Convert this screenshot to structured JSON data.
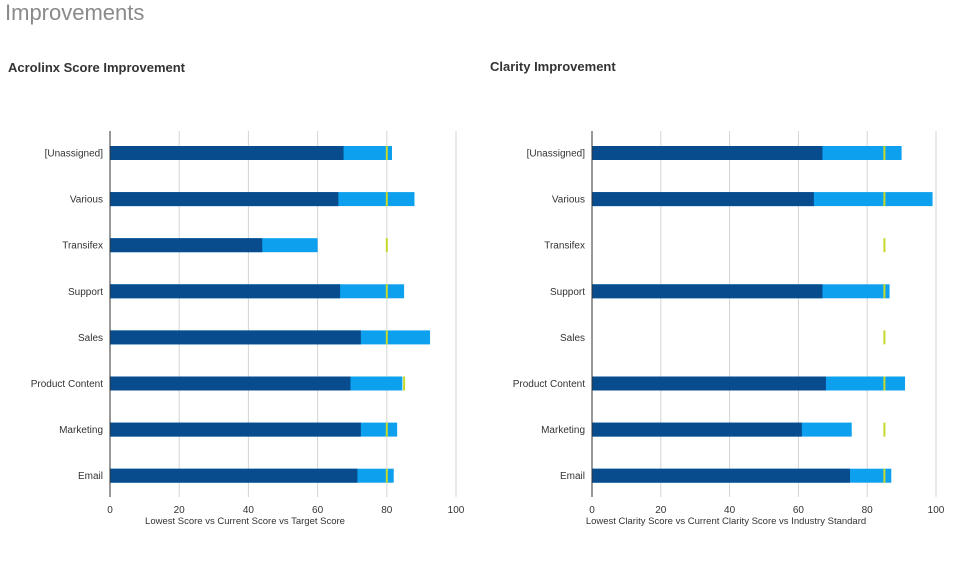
{
  "page": {
    "title": "Improvements"
  },
  "colors": {
    "lowest": "#084c8d",
    "current": "#0ca0ee",
    "target": "#c6d82a",
    "grid": "#d4d4d4",
    "axis": "#333333",
    "label": "#333333"
  },
  "chart_data": [
    {
      "type": "bar",
      "title": "Acrolinx Score Improvement",
      "xlabel": "Lowest Score vs Current Score vs Target Score",
      "xlim": [
        0,
        100
      ],
      "xticks": [
        0,
        20,
        40,
        60,
        80,
        100
      ],
      "categories": [
        "[Unassigned]",
        "Various",
        "Transifex",
        "Support",
        "Sales",
        "Product Content",
        "Marketing",
        "Email"
      ],
      "series": [
        {
          "key": "lowest",
          "values": [
            67.5,
            66,
            44,
            66.5,
            72.5,
            69.5,
            72.5,
            71.5
          ]
        },
        {
          "key": "current",
          "values": [
            81.5,
            88,
            60,
            85,
            92.5,
            84.5,
            83,
            82
          ]
        },
        {
          "key": "target",
          "values": [
            80,
            80,
            80,
            80,
            80,
            85,
            80,
            80
          ]
        }
      ],
      "grid": true
    },
    {
      "type": "bar",
      "title": "Clarity Improvement",
      "xlabel": "Lowest Clarity Score vs Current Clarity Score vs Industry Standard",
      "xlim": [
        0,
        100
      ],
      "xticks": [
        0,
        20,
        40,
        60,
        80,
        100
      ],
      "categories": [
        "[Unassigned]",
        "Various",
        "Transifex",
        "Support",
        "Sales",
        "Product Content",
        "Marketing",
        "Email"
      ],
      "series": [
        {
          "key": "lowest",
          "values": [
            67,
            64.5,
            null,
            67,
            null,
            68,
            61,
            75
          ]
        },
        {
          "key": "current",
          "values": [
            90,
            99,
            null,
            86.5,
            null,
            91,
            75.5,
            87
          ]
        },
        {
          "key": "target",
          "values": [
            85,
            85,
            85,
            85,
            85,
            85,
            85,
            85
          ]
        }
      ],
      "grid": true
    }
  ]
}
